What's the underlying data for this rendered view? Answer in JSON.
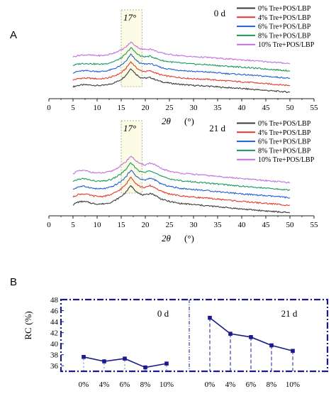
{
  "panel_labels": {
    "a": "A",
    "b": "B"
  },
  "chart_data": [
    {
      "type": "line",
      "panel": "A",
      "subplot": "top",
      "day_label": "0 d",
      "xlabel_symbol": "2θ",
      "xlabel_unit": "(°)",
      "annotation": "17°",
      "xlim": [
        0,
        55
      ],
      "xticks": [
        "0",
        "5",
        "10",
        "15",
        "20",
        "25",
        "30",
        "35",
        "40",
        "45",
        "50",
        "55"
      ],
      "data_range": [
        5,
        50
      ],
      "series": [
        {
          "name": "0%   Tre+POS/LBP",
          "color": "#3a3a3a",
          "x": [
            5,
            6,
            7,
            8,
            9,
            10,
            11,
            12,
            13,
            14,
            15,
            16,
            17,
            18,
            19,
            20,
            21,
            22,
            23,
            24,
            25,
            27,
            30,
            33,
            36,
            40,
            45,
            50
          ],
          "y": [
            0.1,
            0.3,
            0.4,
            0.4,
            0.35,
            0.3,
            0.3,
            0.4,
            0.6,
            0.9,
            1.3,
            2.0,
            3.1,
            2.2,
            1.6,
            1.5,
            1.6,
            1.3,
            1.0,
            0.8,
            0.7,
            0.5,
            0.3,
            0.2,
            0.0,
            -0.2,
            -0.5,
            -0.8
          ]
        },
        {
          "name": "4%   Tre+POS/LBP",
          "color": "#e03a2e",
          "x": [
            5,
            6,
            7,
            8,
            9,
            10,
            11,
            12,
            13,
            14,
            15,
            16,
            17,
            18,
            19,
            20,
            21,
            22,
            23,
            24,
            25,
            27,
            30,
            33,
            36,
            40,
            45,
            50
          ],
          "y": [
            1.2,
            1.4,
            1.5,
            1.5,
            1.45,
            1.4,
            1.4,
            1.5,
            1.7,
            2.0,
            2.4,
            3.1,
            4.2,
            3.3,
            2.7,
            2.6,
            2.7,
            2.4,
            2.1,
            1.9,
            1.8,
            1.6,
            1.4,
            1.3,
            1.1,
            0.9,
            0.6,
            0.3
          ]
        },
        {
          "name": "6%   Tre+POS/LBP",
          "color": "#1f5fd6",
          "x": [
            5,
            6,
            7,
            8,
            9,
            10,
            11,
            12,
            13,
            14,
            15,
            16,
            17,
            18,
            19,
            20,
            21,
            22,
            23,
            24,
            25,
            27,
            30,
            33,
            36,
            40,
            45,
            50
          ],
          "y": [
            2.4,
            2.6,
            2.7,
            2.7,
            2.65,
            2.6,
            2.6,
            2.7,
            2.9,
            3.2,
            3.6,
            4.3,
            5.4,
            4.5,
            3.9,
            3.8,
            3.9,
            3.6,
            3.3,
            3.1,
            3.0,
            2.8,
            2.6,
            2.5,
            2.3,
            2.1,
            1.8,
            1.5
          ]
        },
        {
          "name": "8%   Tre+POS/LBP",
          "color": "#1a9a5a",
          "x": [
            5,
            6,
            7,
            8,
            9,
            10,
            11,
            12,
            13,
            14,
            15,
            16,
            17,
            18,
            19,
            20,
            21,
            22,
            23,
            24,
            25,
            27,
            30,
            33,
            36,
            40,
            45,
            50
          ],
          "y": [
            3.6,
            3.8,
            3.9,
            3.9,
            3.85,
            3.8,
            3.8,
            3.9,
            4.1,
            4.4,
            4.8,
            5.5,
            6.5,
            5.7,
            5.1,
            5.0,
            5.1,
            4.8,
            4.5,
            4.3,
            4.2,
            4.0,
            3.8,
            3.7,
            3.5,
            3.3,
            3.0,
            2.7
          ]
        },
        {
          "name": "10% Tre+POS/LBP",
          "color": "#c070e0",
          "x": [
            5,
            6,
            7,
            8,
            9,
            10,
            11,
            12,
            13,
            14,
            15,
            16,
            17,
            18,
            19,
            20,
            21,
            22,
            23,
            24,
            25,
            27,
            30,
            33,
            36,
            40,
            45,
            50
          ],
          "y": [
            5.0,
            5.2,
            5.3,
            5.3,
            5.25,
            5.2,
            5.2,
            5.3,
            5.5,
            5.8,
            6.1,
            6.6,
            7.4,
            6.8,
            6.3,
            6.2,
            6.3,
            6.0,
            5.7,
            5.5,
            5.4,
            5.2,
            5.0,
            4.9,
            4.7,
            4.5,
            4.2,
            3.9
          ]
        }
      ]
    },
    {
      "type": "line",
      "panel": "A",
      "subplot": "bottom",
      "day_label": "21 d",
      "xlabel_symbol": "2θ",
      "xlabel_unit": "(°)",
      "annotation": "17°",
      "xlim": [
        0,
        55
      ],
      "xticks": [
        "0",
        "5",
        "10",
        "15",
        "20",
        "25",
        "30",
        "35",
        "40",
        "45",
        "50",
        "55"
      ],
      "data_range": [
        5,
        50
      ],
      "series": [
        {
          "name": "0%   Tre+POS/LBP",
          "color": "#3a3a3a",
          "x": [
            5,
            6,
            7,
            8,
            9,
            10,
            11,
            12,
            13,
            14,
            15,
            16,
            17,
            18,
            19,
            20,
            21,
            22,
            23,
            24,
            25,
            27,
            30,
            33,
            36,
            40,
            45,
            50
          ],
          "y": [
            0.2,
            0.6,
            0.7,
            0.6,
            0.4,
            0.3,
            0.3,
            0.4,
            0.6,
            1.0,
            1.5,
            2.2,
            3.2,
            2.4,
            1.8,
            1.7,
            2.0,
            1.7,
            1.2,
            0.9,
            0.7,
            0.4,
            0.2,
            0.0,
            -0.2,
            -0.5,
            -0.8,
            -1.1
          ]
        },
        {
          "name": "4%   Tre+POS/LBP",
          "color": "#e03a2e",
          "x": [
            5,
            6,
            7,
            8,
            9,
            10,
            11,
            12,
            13,
            14,
            15,
            16,
            17,
            18,
            19,
            20,
            21,
            22,
            23,
            24,
            25,
            27,
            30,
            33,
            36,
            40,
            45,
            50
          ],
          "y": [
            1.4,
            1.8,
            1.9,
            1.8,
            1.6,
            1.5,
            1.5,
            1.6,
            1.8,
            2.2,
            2.7,
            3.4,
            4.6,
            3.6,
            3.0,
            2.9,
            3.2,
            2.9,
            2.4,
            2.1,
            1.9,
            1.6,
            1.4,
            1.2,
            1.0,
            0.7,
            0.4,
            0.1
          ]
        },
        {
          "name": "6%   Tre+POS/LBP",
          "color": "#1f5fd6",
          "x": [
            5,
            6,
            7,
            8,
            9,
            10,
            11,
            12,
            13,
            14,
            15,
            16,
            17,
            18,
            19,
            20,
            21,
            22,
            23,
            24,
            25,
            27,
            30,
            33,
            36,
            40,
            45,
            50
          ],
          "y": [
            2.6,
            3.0,
            3.1,
            3.0,
            2.8,
            2.7,
            2.7,
            2.8,
            3.0,
            3.4,
            3.9,
            4.6,
            5.7,
            4.8,
            4.2,
            4.1,
            4.4,
            4.1,
            3.6,
            3.3,
            3.1,
            2.8,
            2.6,
            2.4,
            2.2,
            1.9,
            1.6,
            1.3
          ]
        },
        {
          "name": "8%   Tre+POS/LBP",
          "color": "#1a9a5a",
          "x": [
            5,
            6,
            7,
            8,
            9,
            10,
            11,
            12,
            13,
            14,
            15,
            16,
            17,
            18,
            19,
            20,
            21,
            22,
            23,
            24,
            25,
            27,
            30,
            33,
            36,
            40,
            45,
            50
          ],
          "y": [
            3.8,
            4.2,
            4.3,
            4.2,
            4.0,
            3.9,
            3.9,
            4.0,
            4.2,
            4.6,
            5.1,
            5.8,
            6.8,
            6.0,
            5.4,
            5.3,
            5.6,
            5.3,
            4.8,
            4.5,
            4.3,
            4.0,
            3.8,
            3.6,
            3.4,
            3.1,
            2.8,
            2.5
          ]
        },
        {
          "name": "10% Tre+POS/LBP",
          "color": "#c070e0",
          "x": [
            5,
            6,
            7,
            8,
            9,
            10,
            11,
            12,
            13,
            14,
            15,
            16,
            17,
            18,
            19,
            20,
            21,
            22,
            23,
            24,
            25,
            27,
            30,
            33,
            36,
            40,
            45,
            50
          ],
          "y": [
            5.1,
            5.5,
            5.6,
            5.5,
            5.3,
            5.2,
            5.2,
            5.3,
            5.5,
            5.9,
            6.4,
            7.0,
            7.9,
            7.2,
            6.6,
            6.5,
            6.8,
            6.5,
            6.0,
            5.7,
            5.5,
            5.2,
            5.0,
            4.8,
            4.6,
            4.3,
            4.0,
            3.7
          ]
        }
      ]
    },
    {
      "type": "line",
      "panel": "B",
      "ylabel": "RC",
      "ylabel_unit": "(%)",
      "ylim": [
        35,
        48
      ],
      "yticks": [
        "36",
        "38",
        "40",
        "42",
        "44",
        "46",
        "48"
      ],
      "groups": [
        {
          "label": "0 d",
          "categories": [
            "0%",
            "4%",
            "6%",
            "8%",
            "10%"
          ],
          "values": [
            37.6,
            36.8,
            37.3,
            35.7,
            36.4
          ]
        },
        {
          "label": "21 d",
          "categories": [
            "0%",
            "4%",
            "6%",
            "8%",
            "10%"
          ],
          "values": [
            44.7,
            41.8,
            41.2,
            39.7,
            38.7
          ]
        }
      ],
      "color": "#1a1a8c",
      "axis_color": "#1a1a8c"
    }
  ]
}
